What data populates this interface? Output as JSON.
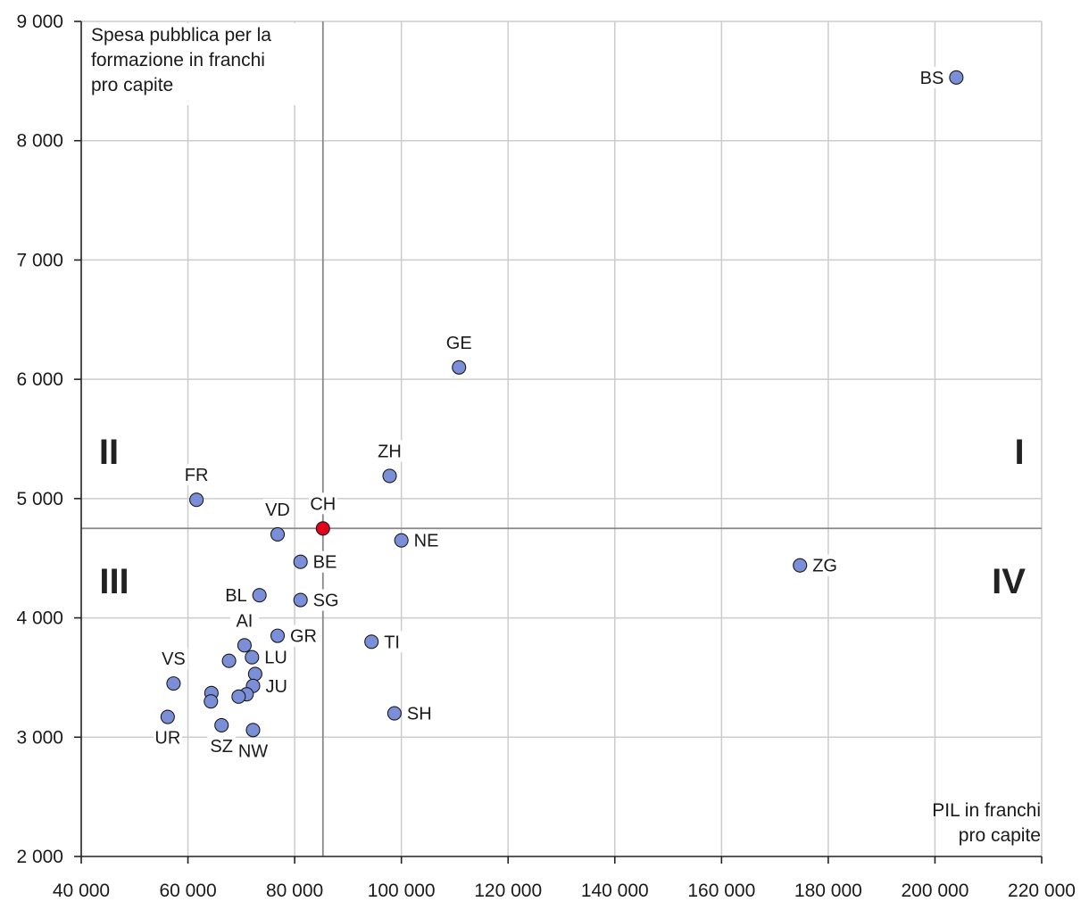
{
  "chart_data": {
    "type": "scatter",
    "title": "",
    "xlabel": [
      "PIL in franchi",
      "pro capite"
    ],
    "ylabel": [
      "Spesa pubblica per la",
      "formazione in franchi",
      "pro capite"
    ],
    "xlim": [
      40000,
      220000
    ],
    "ylim": [
      2000,
      9000
    ],
    "x_ticks": [
      40000,
      60000,
      80000,
      100000,
      120000,
      140000,
      160000,
      180000,
      200000,
      220000
    ],
    "x_tick_labels": [
      "40 000",
      "60 000",
      "80 000",
      "100 000",
      "120 000",
      "140 000",
      "160 000",
      "180 000",
      "200 000",
      "220 000"
    ],
    "y_ticks": [
      2000,
      3000,
      4000,
      5000,
      6000,
      7000,
      8000,
      9000
    ],
    "y_tick_labels": [
      "2 000",
      "3 000",
      "4 000",
      "5 000",
      "6 000",
      "7 000",
      "8 000",
      "9 000"
    ],
    "grid": true,
    "reference": {
      "x": 85300,
      "y": 4750
    },
    "quadrants": [
      "I",
      "II",
      "III",
      "IV"
    ],
    "highlight_color": "#e3001b",
    "point_color": "#7b8fd8",
    "points": [
      {
        "label": "BS",
        "x": 204000,
        "y": 8530,
        "pos": "left"
      },
      {
        "label": "GE",
        "x": 110800,
        "y": 6100,
        "pos": "top"
      },
      {
        "label": "ZH",
        "x": 97800,
        "y": 5190,
        "pos": "top"
      },
      {
        "label": "FR",
        "x": 61600,
        "y": 4990,
        "pos": "top"
      },
      {
        "label": "VD",
        "x": 76800,
        "y": 4700,
        "pos": "top"
      },
      {
        "label": "CH",
        "x": 85300,
        "y": 4750,
        "pos": "top",
        "highlight": true
      },
      {
        "label": "NE",
        "x": 100000,
        "y": 4650,
        "pos": "right"
      },
      {
        "label": "ZG",
        "x": 174700,
        "y": 4440,
        "pos": "right"
      },
      {
        "label": "BE",
        "x": 81100,
        "y": 4470,
        "pos": "right"
      },
      {
        "label": "BL",
        "x": 73400,
        "y": 4190,
        "pos": "left"
      },
      {
        "label": "SG",
        "x": 81100,
        "y": 4150,
        "pos": "right"
      },
      {
        "label": "GR",
        "x": 76800,
        "y": 3850,
        "pos": "right"
      },
      {
        "label": "AI",
        "x": 70600,
        "y": 3770,
        "pos": "top"
      },
      {
        "label": "TI",
        "x": 94400,
        "y": 3800,
        "pos": "right"
      },
      {
        "label": "LU",
        "x": 72000,
        "y": 3670,
        "pos": "right"
      },
      {
        "label": "",
        "x": 67700,
        "y": 3640,
        "pos": "none"
      },
      {
        "label": "",
        "x": 72600,
        "y": 3530,
        "pos": "none"
      },
      {
        "label": "VS",
        "x": 57300,
        "y": 3450,
        "pos": "top"
      },
      {
        "label": "JU",
        "x": 72200,
        "y": 3430,
        "pos": "right"
      },
      {
        "label": "",
        "x": 64400,
        "y": 3370,
        "pos": "none"
      },
      {
        "label": "",
        "x": 71000,
        "y": 3360,
        "pos": "none"
      },
      {
        "label": "",
        "x": 69500,
        "y": 3340,
        "pos": "none"
      },
      {
        "label": "",
        "x": 64300,
        "y": 3300,
        "pos": "none"
      },
      {
        "label": "SH",
        "x": 98700,
        "y": 3200,
        "pos": "right"
      },
      {
        "label": "UR",
        "x": 56200,
        "y": 3170,
        "pos": "bottom"
      },
      {
        "label": "SZ",
        "x": 66300,
        "y": 3100,
        "pos": "bottom"
      },
      {
        "label": "NW",
        "x": 72200,
        "y": 3060,
        "pos": "bottom"
      }
    ]
  }
}
